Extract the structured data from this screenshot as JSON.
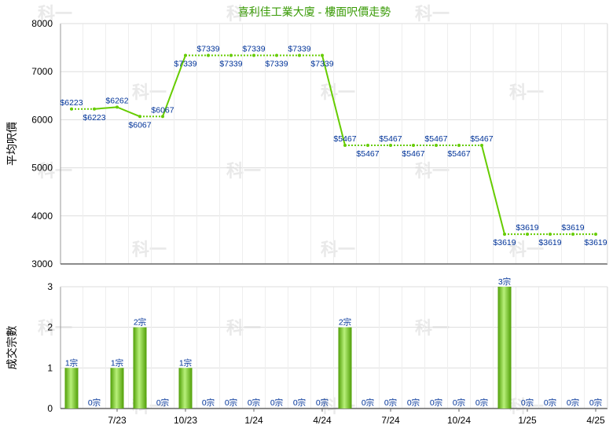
{
  "title": "喜利佳工業大廈 - 樓面呎價走勢",
  "watermark": "科一",
  "colors": {
    "line": "#66cc00",
    "bar_light": "#b8f07a",
    "bar_dark": "#4f9e06",
    "title": "#3a9b07",
    "label": "#003399",
    "grid": "#dddddd",
    "axis": "#999999"
  },
  "chart_data": [
    {
      "type": "line",
      "ylabel": "平均呎價",
      "ylim": [
        3000,
        8000
      ],
      "yticks": [
        "3000",
        "4000",
        "5000",
        "6000",
        "7000",
        "8000"
      ],
      "grid": true,
      "values": [
        6223,
        6223,
        6262,
        6067,
        6067,
        7339,
        7339,
        7339,
        7339,
        7339,
        7339,
        7339,
        5467,
        5467,
        5467,
        5467,
        5467,
        5467,
        5467,
        3619,
        3619,
        3619,
        3619,
        3619
      ],
      "labels": [
        "$6223",
        "$6223",
        "$6262",
        "$6067",
        "$6067",
        "$7339",
        "$7339",
        "$7339",
        "$7339",
        "$7339",
        "$7339",
        "$7339",
        "$5467",
        "$5467",
        "$5467",
        "$5467",
        "$5467",
        "$5467",
        "$5467",
        "$3619",
        "$3619",
        "$3619",
        "$3619",
        "$3619"
      ]
    },
    {
      "type": "bar",
      "ylabel": "成交宗數",
      "ylim": [
        0,
        3
      ],
      "yticks": [
        "0",
        "1",
        "2",
        "3"
      ],
      "grid": true,
      "values": [
        1,
        0,
        1,
        2,
        0,
        1,
        0,
        0,
        0,
        0,
        0,
        0,
        2,
        0,
        0,
        0,
        0,
        0,
        0,
        3,
        0,
        0,
        0,
        0
      ],
      "labels": [
        "1宗",
        "0宗",
        "1宗",
        "2宗",
        "0宗",
        "1宗",
        "0宗",
        "0宗",
        "0宗",
        "0宗",
        "0宗",
        "0宗",
        "2宗",
        "0宗",
        "0宗",
        "0宗",
        "0宗",
        "0宗",
        "0宗",
        "3宗",
        "0宗",
        "0宗",
        "0宗",
        "0宗"
      ],
      "xticks": [
        "7/23",
        "10/23",
        "1/24",
        "4/24",
        "7/24",
        "10/24",
        "1/25",
        "4/25"
      ]
    }
  ]
}
